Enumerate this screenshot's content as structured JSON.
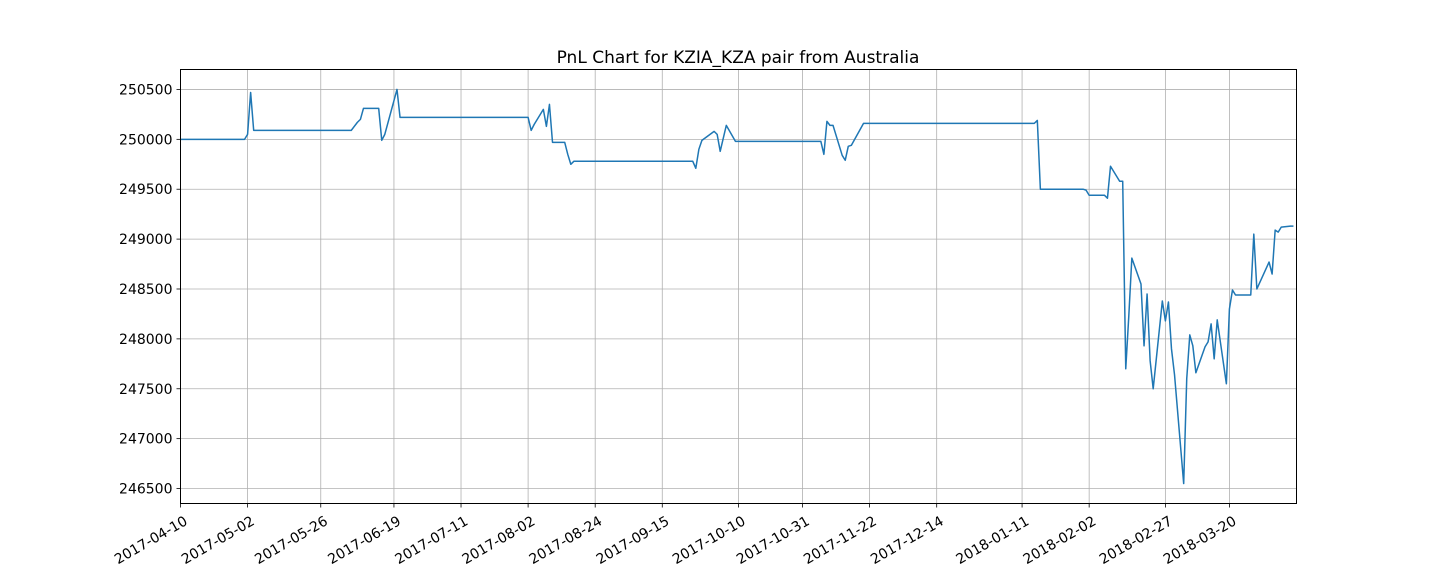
{
  "chart_data": {
    "type": "line",
    "title": "PnL Chart for KZIA_KZA pair from Australia",
    "xlabel": "",
    "ylabel": "",
    "x_ticks": [
      "2017-04-10",
      "2017-05-02",
      "2017-05-26",
      "2017-06-19",
      "2017-07-11",
      "2017-08-02",
      "2017-08-24",
      "2017-09-15",
      "2017-10-10",
      "2017-10-31",
      "2017-11-22",
      "2017-12-14",
      "2018-01-11",
      "2018-02-02",
      "2018-02-27",
      "2018-03-20"
    ],
    "y_ticks": [
      246500,
      247000,
      247500,
      248000,
      248500,
      249000,
      249500,
      250000,
      250500
    ],
    "xlim": [
      "2017-04-10",
      "2018-04-11"
    ],
    "ylim": [
      246350,
      250700
    ],
    "grid": true,
    "legend": "none",
    "colors": {
      "line": "#1f77b4"
    },
    "series": [
      {
        "points": [
          [
            "2017-04-10",
            250000
          ],
          [
            "2017-05-01",
            250000
          ],
          [
            "2017-05-02",
            250050
          ],
          [
            "2017-05-03",
            250470
          ],
          [
            "2017-05-04",
            250090
          ],
          [
            "2017-06-05",
            250090
          ],
          [
            "2017-06-07",
            250170
          ],
          [
            "2017-06-08",
            250200
          ],
          [
            "2017-06-09",
            250310
          ],
          [
            "2017-06-14",
            250310
          ],
          [
            "2017-06-15",
            249990
          ],
          [
            "2017-06-16",
            250050
          ],
          [
            "2017-06-20",
            250500
          ],
          [
            "2017-06-21",
            250220
          ],
          [
            "2017-08-02",
            250220
          ],
          [
            "2017-08-03",
            250090
          ],
          [
            "2017-08-04",
            250150
          ],
          [
            "2017-08-07",
            250300
          ],
          [
            "2017-08-08",
            250130
          ],
          [
            "2017-08-09",
            250350
          ],
          [
            "2017-08-10",
            249970
          ],
          [
            "2017-08-14",
            249970
          ],
          [
            "2017-08-15",
            249850
          ],
          [
            "2017-08-16",
            249750
          ],
          [
            "2017-08-17",
            249780
          ],
          [
            "2017-09-25",
            249780
          ],
          [
            "2017-09-26",
            249710
          ],
          [
            "2017-09-27",
            249900
          ],
          [
            "2017-09-28",
            249990
          ],
          [
            "2017-10-02",
            250080
          ],
          [
            "2017-10-03",
            250050
          ],
          [
            "2017-10-04",
            249880
          ],
          [
            "2017-10-06",
            250140
          ],
          [
            "2017-10-09",
            249980
          ],
          [
            "2017-11-06",
            249980
          ],
          [
            "2017-11-07",
            249850
          ],
          [
            "2017-11-08",
            250180
          ],
          [
            "2017-11-09",
            250140
          ],
          [
            "2017-11-10",
            250140
          ],
          [
            "2017-11-13",
            249840
          ],
          [
            "2017-11-14",
            249790
          ],
          [
            "2017-11-15",
            249930
          ],
          [
            "2017-11-16",
            249940
          ],
          [
            "2017-11-20",
            250160
          ],
          [
            "2018-01-15",
            250160
          ],
          [
            "2018-01-16",
            250190
          ],
          [
            "2018-01-17",
            249500
          ],
          [
            "2018-01-31",
            249500
          ],
          [
            "2018-02-01",
            249490
          ],
          [
            "2018-02-02",
            249440
          ],
          [
            "2018-02-07",
            249440
          ],
          [
            "2018-02-08",
            249410
          ],
          [
            "2018-02-09",
            249730
          ],
          [
            "2018-02-12",
            249580
          ],
          [
            "2018-02-13",
            249580
          ],
          [
            "2018-02-14",
            247700
          ],
          [
            "2018-02-15",
            248230
          ],
          [
            "2018-02-16",
            248810
          ],
          [
            "2018-02-19",
            248550
          ],
          [
            "2018-02-20",
            247930
          ],
          [
            "2018-02-21",
            248450
          ],
          [
            "2018-02-22",
            247780
          ],
          [
            "2018-02-23",
            247500
          ],
          [
            "2018-02-26",
            248380
          ],
          [
            "2018-02-27",
            248180
          ],
          [
            "2018-02-28",
            248370
          ],
          [
            "2018-03-01",
            247900
          ],
          [
            "2018-03-02",
            247640
          ],
          [
            "2018-03-05",
            246550
          ],
          [
            "2018-03-06",
            247600
          ],
          [
            "2018-03-07",
            248040
          ],
          [
            "2018-03-08",
            247930
          ],
          [
            "2018-03-09",
            247660
          ],
          [
            "2018-03-12",
            247920
          ],
          [
            "2018-03-13",
            247970
          ],
          [
            "2018-03-14",
            248150
          ],
          [
            "2018-03-15",
            247800
          ],
          [
            "2018-03-16",
            248190
          ],
          [
            "2018-03-19",
            247550
          ],
          [
            "2018-03-20",
            248300
          ],
          [
            "2018-03-21",
            248490
          ],
          [
            "2018-03-22",
            248440
          ],
          [
            "2018-03-27",
            248440
          ],
          [
            "2018-03-28",
            249050
          ],
          [
            "2018-03-29",
            248500
          ],
          [
            "2018-04-02",
            248770
          ],
          [
            "2018-04-03",
            248650
          ],
          [
            "2018-04-04",
            249090
          ],
          [
            "2018-04-05",
            249070
          ],
          [
            "2018-04-06",
            249120
          ],
          [
            "2018-04-09",
            249130
          ],
          [
            "2018-04-10",
            249130
          ]
        ]
      }
    ]
  }
}
